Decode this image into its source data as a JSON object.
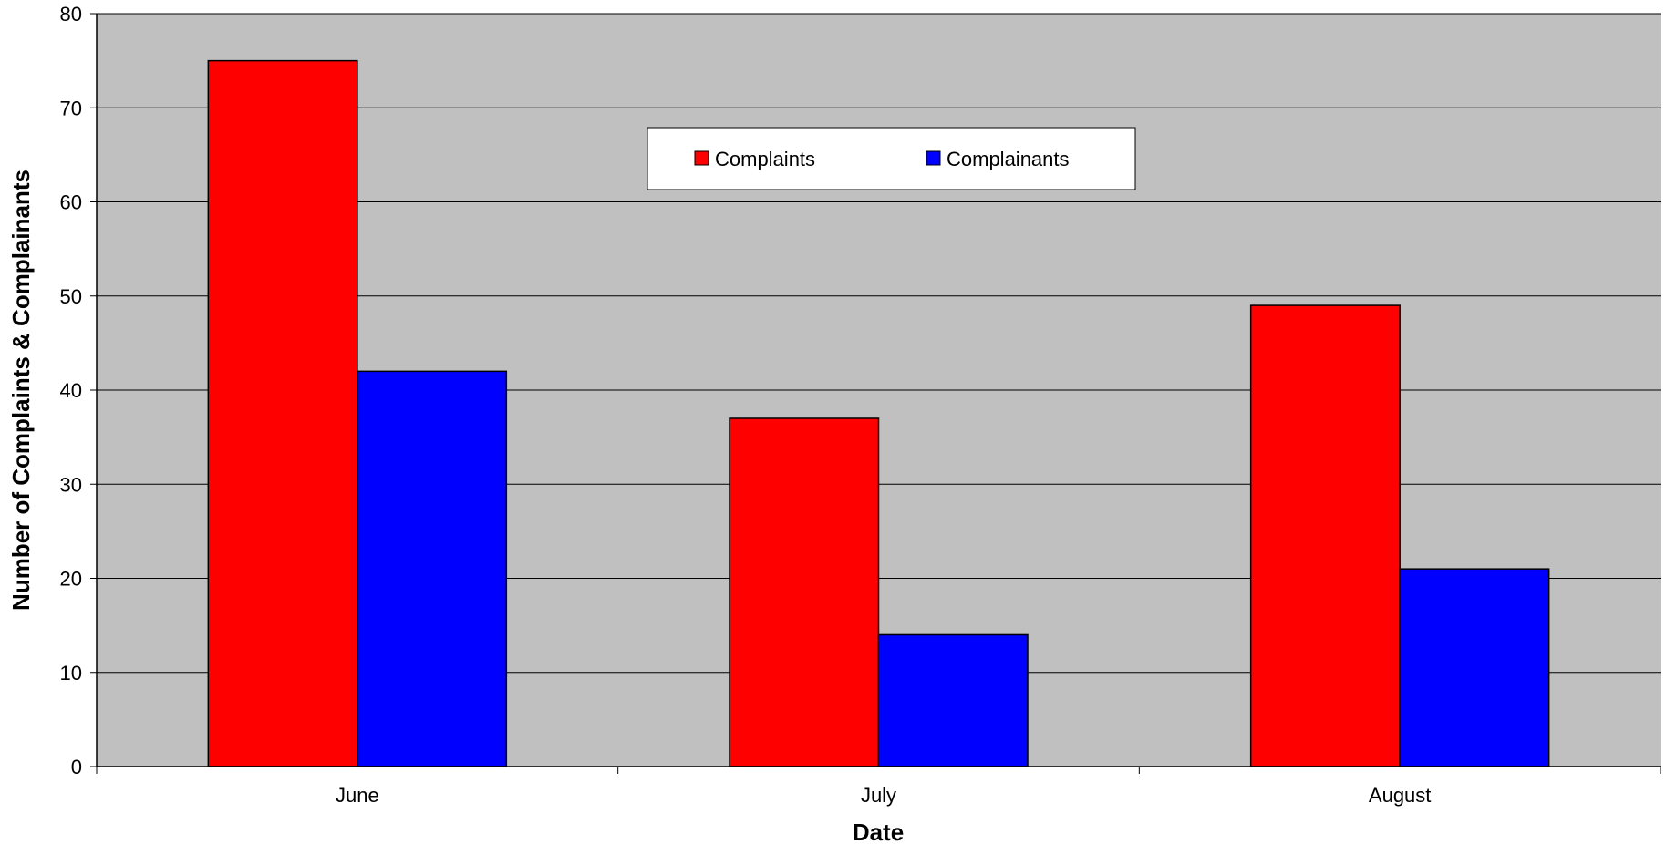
{
  "chart_data": {
    "type": "bar",
    "title": "",
    "xlabel": "Date",
    "ylabel": "Number of Complaints & Complainants",
    "categories": [
      "June",
      "July",
      "August"
    ],
    "ylim": [
      0,
      80
    ],
    "yticks": [
      0,
      10,
      20,
      30,
      40,
      50,
      60,
      70,
      80
    ],
    "grid": true,
    "legend_position": "top-center",
    "plot_background": "#c0c0c0",
    "series": [
      {
        "name": "Complaints",
        "values": [
          75,
          37,
          49
        ],
        "color": "#ff0000"
      },
      {
        "name": "Complainants",
        "values": [
          42,
          14,
          21
        ],
        "color": "#0000ff"
      }
    ]
  }
}
